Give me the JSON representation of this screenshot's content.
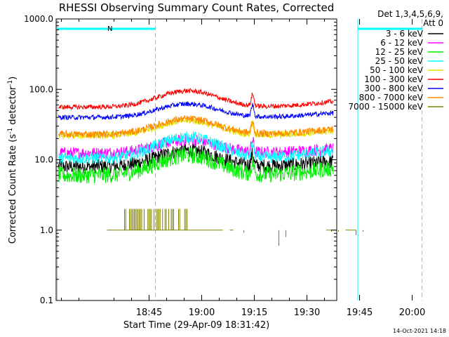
{
  "chart_data": {
    "type": "line",
    "title": "RHESSI Observing Summary Count Rates, Corrected",
    "xlabel": "Start Time (29-Apr-09 18:31:42)",
    "ylabel_main": "Corrected Count Rate (s",
    "ylabel_sup1": "-1",
    "ylabel_mid": " detector",
    "ylabel_sup2": "-1",
    "ylabel_end": ")",
    "y_scale": "log",
    "ylim": [
      0.1,
      1000
    ],
    "xlim_minutes": [
      18.5,
      98.5
    ],
    "x_ticks": [
      {
        "label": "18:45",
        "min": 45
      },
      {
        "label": "19:00",
        "min": 60
      },
      {
        "label": "19:15",
        "min": 75
      },
      {
        "label": "19:30",
        "min": 90
      },
      {
        "label": "19:45",
        "min": 105
      },
      {
        "label": "20:00",
        "min": 120
      }
    ],
    "y_ticks": [
      {
        "label": "1000.0",
        "v": 1000
      },
      {
        "label": "100.0",
        "v": 100
      },
      {
        "label": "10.0",
        "v": 10
      },
      {
        "label": "1.0",
        "v": 1
      },
      {
        "label": "0.1",
        "v": 0.1
      }
    ],
    "legend_header": [
      "Det 1,3,4,5,6,9,",
      "Att 0"
    ],
    "legend_placement": "right",
    "series": [
      {
        "name": "3 - 6 keV",
        "color": "#000000",
        "base": 8.0,
        "peak": 13.5,
        "noise": 0.06
      },
      {
        "name": "6 - 12 keV",
        "color": "#ff00ff",
        "base": 12.5,
        "peak": 19.0,
        "noise": 0.05
      },
      {
        "name": "12 - 25 keV",
        "color": "#00ee00",
        "base": 6.0,
        "peak": 11.5,
        "noise": 0.07
      },
      {
        "name": "25 - 50 keV",
        "color": "#00ffff",
        "base": 10.5,
        "peak": 21.0,
        "noise": 0.05
      },
      {
        "name": "50 - 100 keV",
        "color": "#e5e500",
        "base": 22.0,
        "peak": 36.0,
        "noise": 0.03
      },
      {
        "name": "100 - 300 keV",
        "color": "#ff0000",
        "base": 56.0,
        "peak": 95.0,
        "noise": 0.02
      },
      {
        "name": "300 - 800 keV",
        "color": "#0000ff",
        "base": 40.0,
        "peak": 62.0,
        "noise": 0.02
      },
      {
        "name": "800 - 7000 keV",
        "color": "#ff8800",
        "base": 23.0,
        "peak": 38.0,
        "noise": 0.03
      },
      {
        "name": "7000 - 15000 keV",
        "color": "#808000",
        "base": 1.0,
        "peak": 1.0,
        "noise": 0.0
      }
    ],
    "annotations": [
      {
        "text": "N",
        "color": "#00ffff"
      }
    ],
    "night_bars": [
      {
        "start_min": 18.8,
        "end_min": 46.8
      },
      {
        "start_min": 104.5,
        "end_min": 122.8
      }
    ],
    "night_vlines_min": [
      18.8,
      46.8,
      104.5,
      122.8
    ],
    "timestamp": "14-Oct-2021 14:18"
  }
}
